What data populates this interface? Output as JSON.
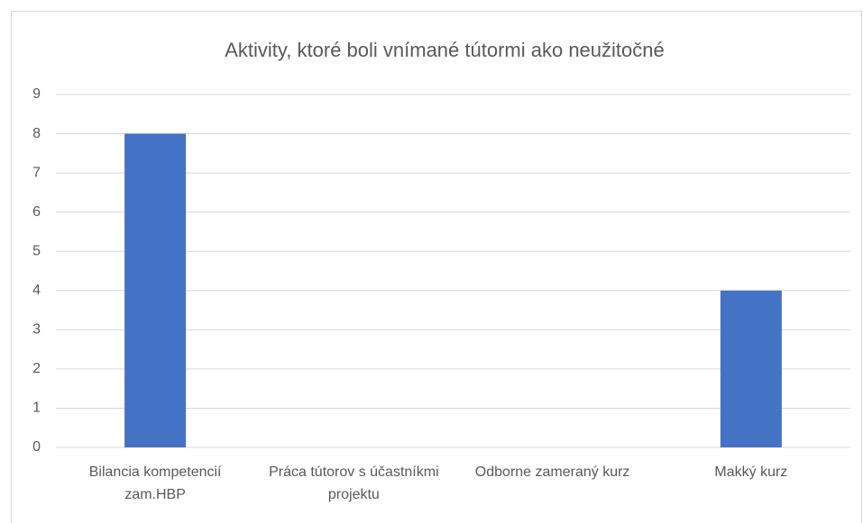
{
  "chart_data": {
    "type": "bar",
    "title": "Aktivity, ktoré boli vnímané tútormi ako neužitočné",
    "categories": [
      "Bilancia kompetencií zam.HBP",
      "Práca tútorov s účastníkmi projektu",
      "Odborne zameraný kurz",
      "Makký kurz"
    ],
    "values": [
      8,
      0,
      0,
      4
    ],
    "color": "#4472c4",
    "ylim": [
      0,
      9
    ],
    "yticks": [
      0,
      1,
      2,
      3,
      4,
      5,
      6,
      7,
      8,
      9
    ],
    "grid": true
  }
}
